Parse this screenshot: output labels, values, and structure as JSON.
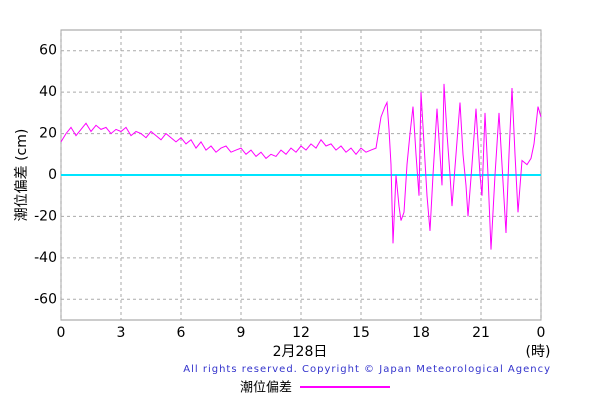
{
  "chart_data": {
    "type": "line",
    "ylabel": "潮位偏差 (cm)",
    "xlabel": "2月28日",
    "xunit": "(時)",
    "copyright": "All rights reserved. Copyright © Japan Meteorological Agency",
    "xlim": [
      0,
      24
    ],
    "xticks": [
      0,
      3,
      6,
      9,
      12,
      15,
      18,
      21,
      {
        "value": 24,
        "label": "0"
      }
    ],
    "ylim": [
      -70,
      70
    ],
    "yticks": [
      -60,
      -40,
      -20,
      0,
      20,
      40,
      60
    ],
    "grid": true,
    "reference_line": {
      "value": 0,
      "color": "#00e5ff"
    },
    "x": [
      0,
      0.25,
      0.5,
      0.75,
      1,
      1.25,
      1.5,
      1.75,
      2,
      2.25,
      2.5,
      2.75,
      3,
      3.25,
      3.5,
      3.75,
      4,
      4.25,
      4.5,
      4.75,
      5,
      5.25,
      5.5,
      5.75,
      6,
      6.25,
      6.5,
      6.75,
      7,
      7.25,
      7.5,
      7.75,
      8,
      8.25,
      8.5,
      8.75,
      9,
      9.25,
      9.5,
      9.75,
      10,
      10.25,
      10.5,
      10.75,
      11,
      11.25,
      11.5,
      11.75,
      12,
      12.25,
      12.5,
      12.75,
      13,
      13.25,
      13.5,
      13.75,
      14,
      14.25,
      14.5,
      14.75,
      15,
      15.25,
      15.5,
      15.75,
      16,
      16.2,
      16.3,
      16.4,
      16.5,
      16.6,
      16.75,
      16.9,
      17,
      17.15,
      17.3,
      17.45,
      17.6,
      17.75,
      17.9,
      18,
      18.15,
      18.3,
      18.45,
      18.6,
      18.8,
      18.95,
      19.05,
      19.15,
      19.3,
      19.45,
      19.55,
      19.75,
      19.95,
      20.1,
      20.25,
      20.35,
      20.55,
      20.75,
      20.95,
      21.05,
      21.2,
      21.35,
      21.5,
      21.7,
      21.9,
      22.05,
      22.25,
      22.4,
      22.55,
      22.7,
      22.85,
      23.05,
      23.3,
      23.5,
      23.65,
      23.85,
      24
    ],
    "series": [
      {
        "name": "潮位偏差",
        "color": "#ff00ff",
        "values": [
          16,
          20,
          23,
          19,
          22,
          25,
          21,
          24,
          22,
          23,
          20,
          22,
          21,
          23,
          19,
          21,
          20,
          18,
          21,
          19,
          17,
          20,
          18,
          16,
          18,
          15,
          17,
          13,
          16,
          12,
          14,
          11,
          13,
          14,
          11,
          12,
          13,
          10,
          12,
          9,
          11,
          8,
          10,
          9,
          12,
          10,
          13,
          11,
          14,
          12,
          15,
          13,
          17,
          14,
          15,
          12,
          14,
          11,
          13,
          10,
          13,
          11,
          12,
          13,
          28,
          33,
          35,
          22,
          5,
          -33,
          0,
          -15,
          -22,
          -18,
          5,
          20,
          33,
          10,
          -10,
          40,
          15,
          -10,
          -27,
          0,
          32,
          10,
          -5,
          44,
          20,
          0,
          -15,
          10,
          35,
          10,
          -5,
          -20,
          5,
          32,
          0,
          -10,
          30,
          0,
          -36,
          0,
          30,
          5,
          -28,
          10,
          42,
          10,
          -18,
          7,
          5,
          8,
          15,
          33,
          28
        ]
      }
    ]
  }
}
